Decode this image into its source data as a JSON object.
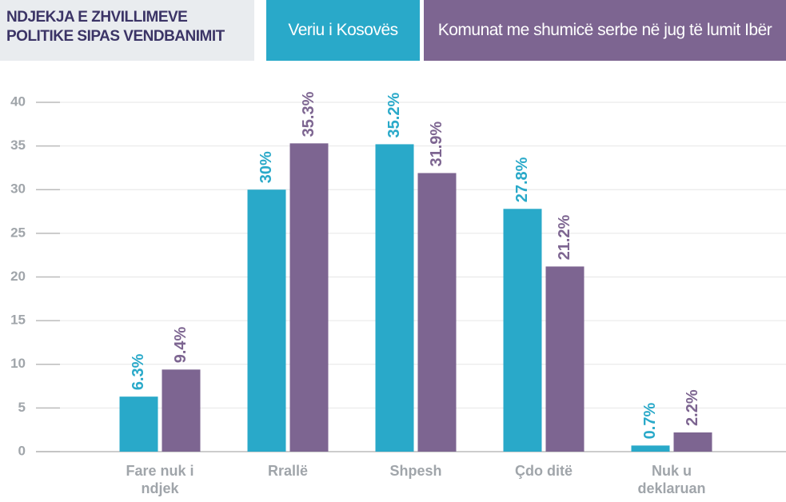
{
  "chart_data": {
    "type": "bar",
    "title": "NDJEKJA E ZHVILLIMEVE POLITIKE SIPAS VENDBANIMIT",
    "categories": [
      "Fare nuk i ndjek",
      "Rrallë",
      "Shpesh",
      "Çdo ditë",
      "Nuk u deklaruan"
    ],
    "series": [
      {
        "name": "Veriu i Kosovës",
        "color": "#29a9c9",
        "values": [
          6.3,
          30,
          35.2,
          27.8,
          0.7
        ],
        "value_labels": [
          "6.3%",
          "30%",
          "35.2%",
          "27.8%",
          "0.7%"
        ]
      },
      {
        "name": "Komunat me shumicë serbe në jug të lumit Ibër",
        "color": "#7d6591",
        "values": [
          9.4,
          35.3,
          31.9,
          21.2,
          2.2
        ],
        "value_labels": [
          "9.4%",
          "35.3%",
          "31.9%",
          "21.2%",
          "2.2%"
        ]
      }
    ],
    "ylim": [
      0,
      40
    ],
    "yticks": [
      0,
      5,
      10,
      15,
      20,
      25,
      30,
      35,
      40
    ],
    "grid": true
  }
}
